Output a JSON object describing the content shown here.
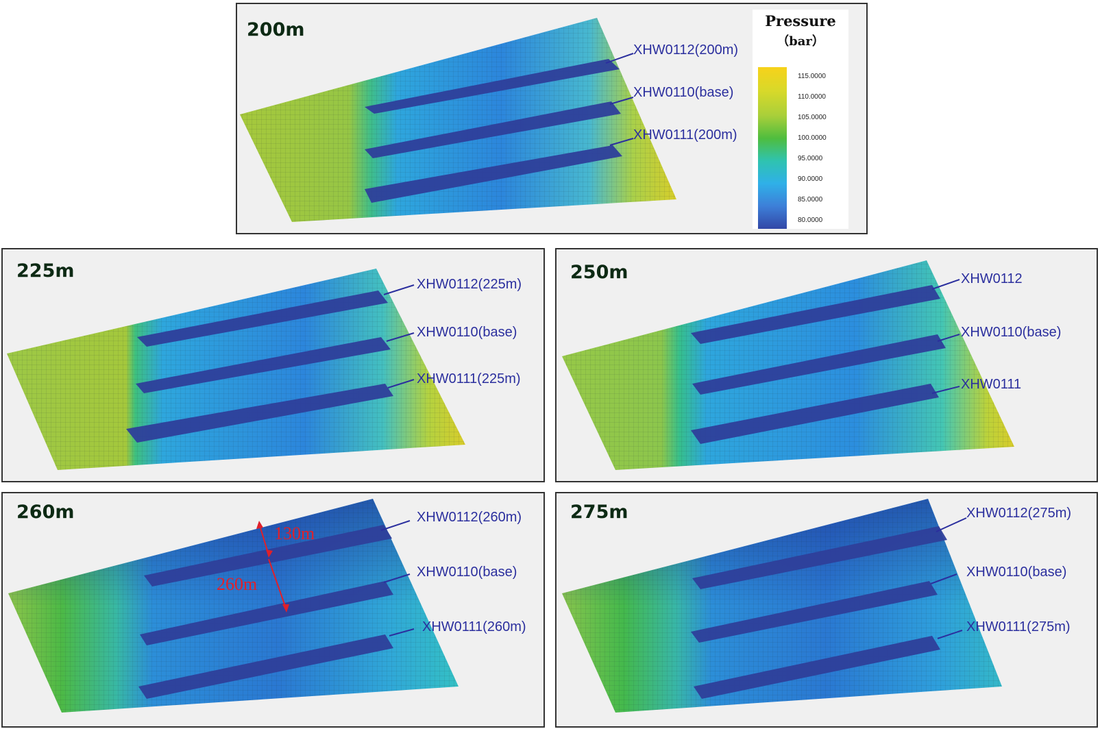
{
  "legend": {
    "title": "Pressure",
    "unit": "（bar）",
    "ticks": [
      "115.0000",
      "110.0000",
      "105.0000",
      "100.0000",
      "95.0000",
      "90.0000",
      "85.0000",
      "80.0000"
    ],
    "colors": [
      "#f7d21a",
      "#d7d92a",
      "#a9cf3a",
      "#4fbd3e",
      "#2fc3b0",
      "#2fb0e8",
      "#3d7fd8",
      "#3247a6"
    ]
  },
  "panels": [
    {
      "title": "200m",
      "wells": [
        "XHW0112(200m)",
        "XHW0110(base)",
        "XHW0111(200m)"
      ]
    },
    {
      "title": "225m",
      "wells": [
        "XHW0112(225m)",
        "XHW0110(base)",
        "XHW0111(225m)"
      ]
    },
    {
      "title": "250m",
      "wells": [
        "XHW0112",
        "XHW0110(base)",
        "XHW0111"
      ]
    },
    {
      "title": "260m",
      "wells": [
        "XHW0112(260m)",
        "XHW0110(base)",
        "XHW0111(260m)"
      ],
      "annotations": [
        "130m",
        "260m"
      ]
    },
    {
      "title": "275m",
      "wells": [
        "XHW0112(275m)",
        "XHW0110(base)",
        "XHW0111(275m)"
      ]
    }
  ],
  "colors": {
    "well_label": "#2b2f9e",
    "annotation": "#e0202a",
    "title": "#0d2a14"
  }
}
